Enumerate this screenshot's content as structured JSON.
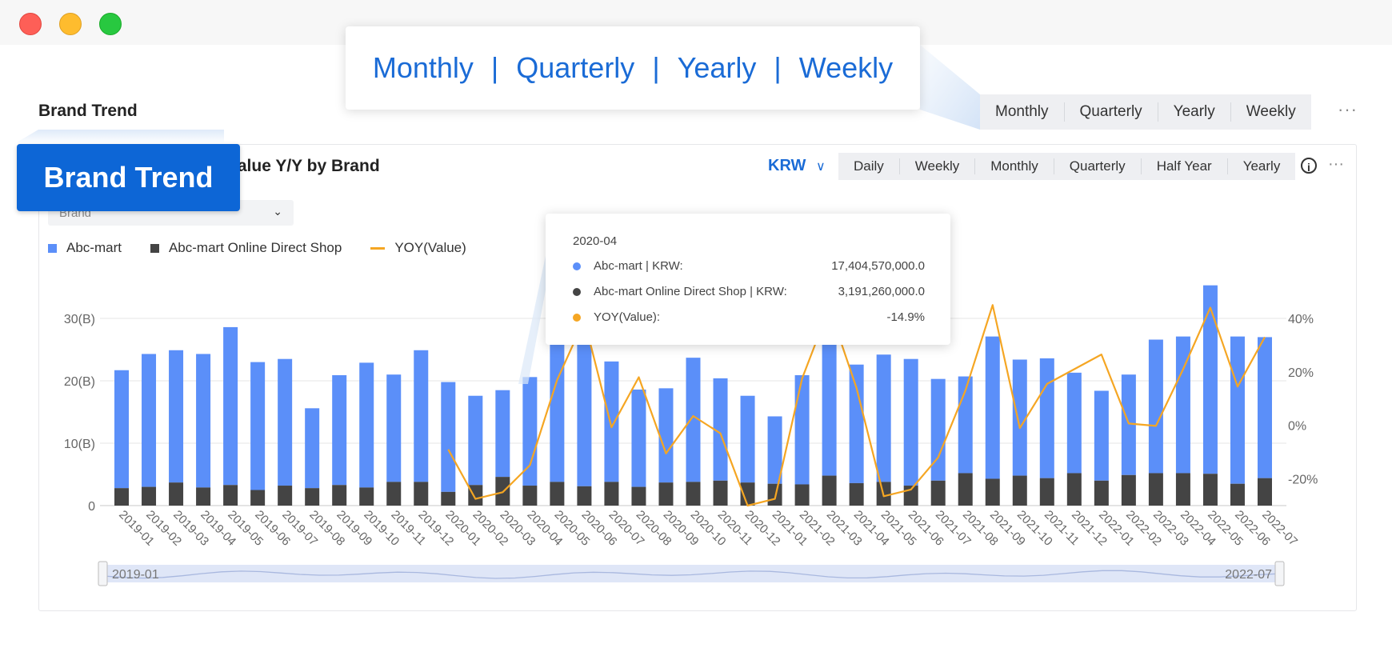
{
  "window": {
    "controls": [
      "close",
      "minimize",
      "maximize"
    ]
  },
  "callout": {
    "options": [
      "Monthly",
      "Quarterly",
      "Yearly",
      "Weekly"
    ],
    "separator": "|"
  },
  "section": {
    "title": "Brand Trend",
    "periods": [
      "Monthly",
      "Quarterly",
      "Yearly",
      "Weekly"
    ],
    "more": "···"
  },
  "badge": {
    "label": "Brand Trend"
  },
  "card": {
    "title": "Value Y/Y by Brand",
    "currency": "KRW",
    "periods": [
      "Daily",
      "Weekly",
      "Monthly",
      "Quarterly",
      "Half Year",
      "Yearly"
    ],
    "info": "i",
    "more": "···",
    "filter": {
      "value": "Brand"
    }
  },
  "legend": [
    {
      "name": "Abc-mart",
      "color": "#5b8ff9",
      "kind": "square"
    },
    {
      "name": "Abc-mart Online Direct Shop",
      "color": "#444444",
      "kind": "square"
    },
    {
      "name": "YOY(Value)",
      "color": "#f5a623",
      "kind": "line"
    }
  ],
  "tooltip": {
    "date": "2020-04",
    "rows": [
      {
        "color": "#5b8ff9",
        "label": "Abc-mart | KRW:",
        "value": "17,404,570,000.0"
      },
      {
        "color": "#444444",
        "label": "Abc-mart Online Direct Shop | KRW:",
        "value": "3,191,260,000.0"
      },
      {
        "color": "#f5a623",
        "label": "YOY(Value):",
        "value": "-14.9%"
      }
    ]
  },
  "slider": {
    "start": "2019-01",
    "end": "2022-07"
  },
  "chart_data": {
    "type": "bar",
    "stacked": true,
    "categories": [
      "2019-01",
      "2019-02",
      "2019-03",
      "2019-04",
      "2019-05",
      "2019-06",
      "2019-07",
      "2019-08",
      "2019-09",
      "2019-10",
      "2019-11",
      "2019-12",
      "2020-01",
      "2020-02",
      "2020-03",
      "2020-04",
      "2020-05",
      "2020-06",
      "2020-07",
      "2020-08",
      "2020-09",
      "2020-10",
      "2020-11",
      "2020-12",
      "2021-01",
      "2021-02",
      "2021-03",
      "2021-04",
      "2021-05",
      "2021-06",
      "2021-07",
      "2021-08",
      "2021-09",
      "2021-10",
      "2021-11",
      "2021-12",
      "2022-01",
      "2022-02",
      "2022-03",
      "2022-04",
      "2022-05",
      "2022-06",
      "2022-07"
    ],
    "series": [
      {
        "name": "Abc-mart",
        "color": "#5b8ff9",
        "values": [
          18.9,
          21.3,
          21.2,
          21.4,
          25.3,
          20.5,
          20.3,
          12.8,
          17.6,
          20,
          17.2,
          21.1,
          17.6,
          14.3,
          13.9,
          17.4,
          27.3,
          27.1,
          19.3,
          15.6,
          15.1,
          19.9,
          16.4,
          13.9,
          10.8,
          17.5,
          23.3,
          19,
          20.4,
          20.3,
          16.3,
          15.5,
          22.8,
          18.6,
          19.2,
          16.1,
          14.4,
          16.1,
          21.4,
          21.9,
          30.2,
          23.6,
          22.6
        ]
      },
      {
        "name": "Abc-mart Online Direct Shop",
        "color": "#444444",
        "values": [
          2.8,
          3,
          3.7,
          2.9,
          3.3,
          2.5,
          3.2,
          2.8,
          3.3,
          2.9,
          3.8,
          3.8,
          2.2,
          3.3,
          4.6,
          3.2,
          3.8,
          3.1,
          3.8,
          3,
          3.7,
          3.8,
          4,
          3.7,
          3.5,
          3.4,
          4.8,
          3.6,
          3.8,
          3.2,
          4,
          5.2,
          4.3,
          4.8,
          4.4,
          5.2,
          4,
          4.9,
          5.2,
          5.2,
          5.1,
          3.5,
          4.4
        ]
      },
      {
        "name": "YOY(Value)",
        "color": "#f5a623",
        "axis": "right",
        "values": [
          null,
          null,
          null,
          null,
          null,
          null,
          null,
          null,
          null,
          null,
          null,
          null,
          -9,
          -27.5,
          -25,
          -14.9,
          17,
          39.5,
          -0.7,
          18,
          -10.5,
          3.5,
          -3,
          -30,
          -27.5,
          17.5,
          44,
          14,
          -26.5,
          -24,
          -12,
          13,
          45,
          -1,
          15.5,
          21,
          26.5,
          0.7,
          -0.2,
          21,
          44,
          14.5,
          33
        ]
      }
    ],
    "y_left": {
      "ticks": [
        "0",
        "10(B)",
        "20(B)",
        "30(B)"
      ],
      "ylim": [
        0,
        30
      ]
    },
    "y_right": {
      "ticks": [
        "-20%",
        "0%",
        "20%",
        "40%"
      ],
      "ylim": [
        -30,
        40
      ]
    },
    "grid": true,
    "legend_position": "top-left"
  }
}
